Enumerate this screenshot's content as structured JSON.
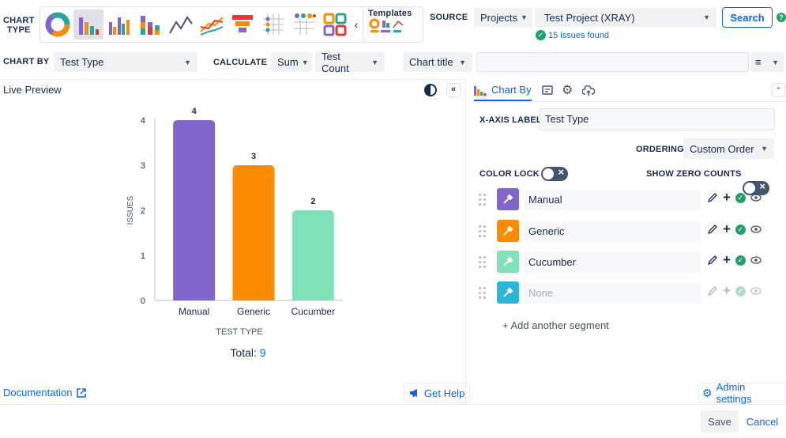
{
  "toolbar": {
    "chart_type_label_1": "CHART",
    "chart_type_label_2": "TYPE",
    "templates_label": "Templates",
    "source_label": "SOURCE",
    "source_scope": "Projects",
    "source_project": "Test Project (XRAY)",
    "search_button": "Search",
    "issues_found": "15 issues found"
  },
  "controls": {
    "chart_by_label": "CHART BY",
    "chart_by_value": "Test Type",
    "calculate_label": "CALCULATE",
    "calc_fn": "Sum",
    "calc_field": "Test Count",
    "chart_title_label": "Chart title",
    "chart_title_value": ""
  },
  "preview": {
    "label": "Live Preview",
    "total_label": "Total:",
    "total_value": "9"
  },
  "chart_data": {
    "type": "bar",
    "categories": [
      "Manual",
      "Generic",
      "Cucumber"
    ],
    "values": [
      4,
      3,
      2
    ],
    "colors": [
      "#8066c8",
      "#fb8c00",
      "#80e0b8"
    ],
    "xlabel": "TEST TYPE",
    "ylabel": "ISSUES",
    "ylim": [
      0,
      4
    ],
    "yticks": [
      0,
      1,
      2,
      3,
      4
    ],
    "grid": false
  },
  "panel": {
    "tab_chart_by": "Chart By",
    "xaxis_label_label": "X-AXIS LABEL",
    "xaxis_label_value": "Test Type",
    "ordering_label": "ORDERING",
    "ordering_value": "Custom Order",
    "color_lock_label": "COLOR LOCK",
    "show_zero_label": "SHOW ZERO COUNTS",
    "segments": [
      {
        "name": "Manual",
        "color": "#8066c8"
      },
      {
        "name": "Generic",
        "color": "#fb8c00"
      },
      {
        "name": "Cucumber",
        "color": "#80e0b8"
      },
      {
        "name": "None",
        "color": "#29b6d8"
      }
    ],
    "add_segment": "+ Add another segment"
  },
  "footer": {
    "documentation": "Documentation",
    "get_help": "Get Help",
    "admin_settings": "Admin settings",
    "save": "Save",
    "cancel": "Cancel"
  }
}
